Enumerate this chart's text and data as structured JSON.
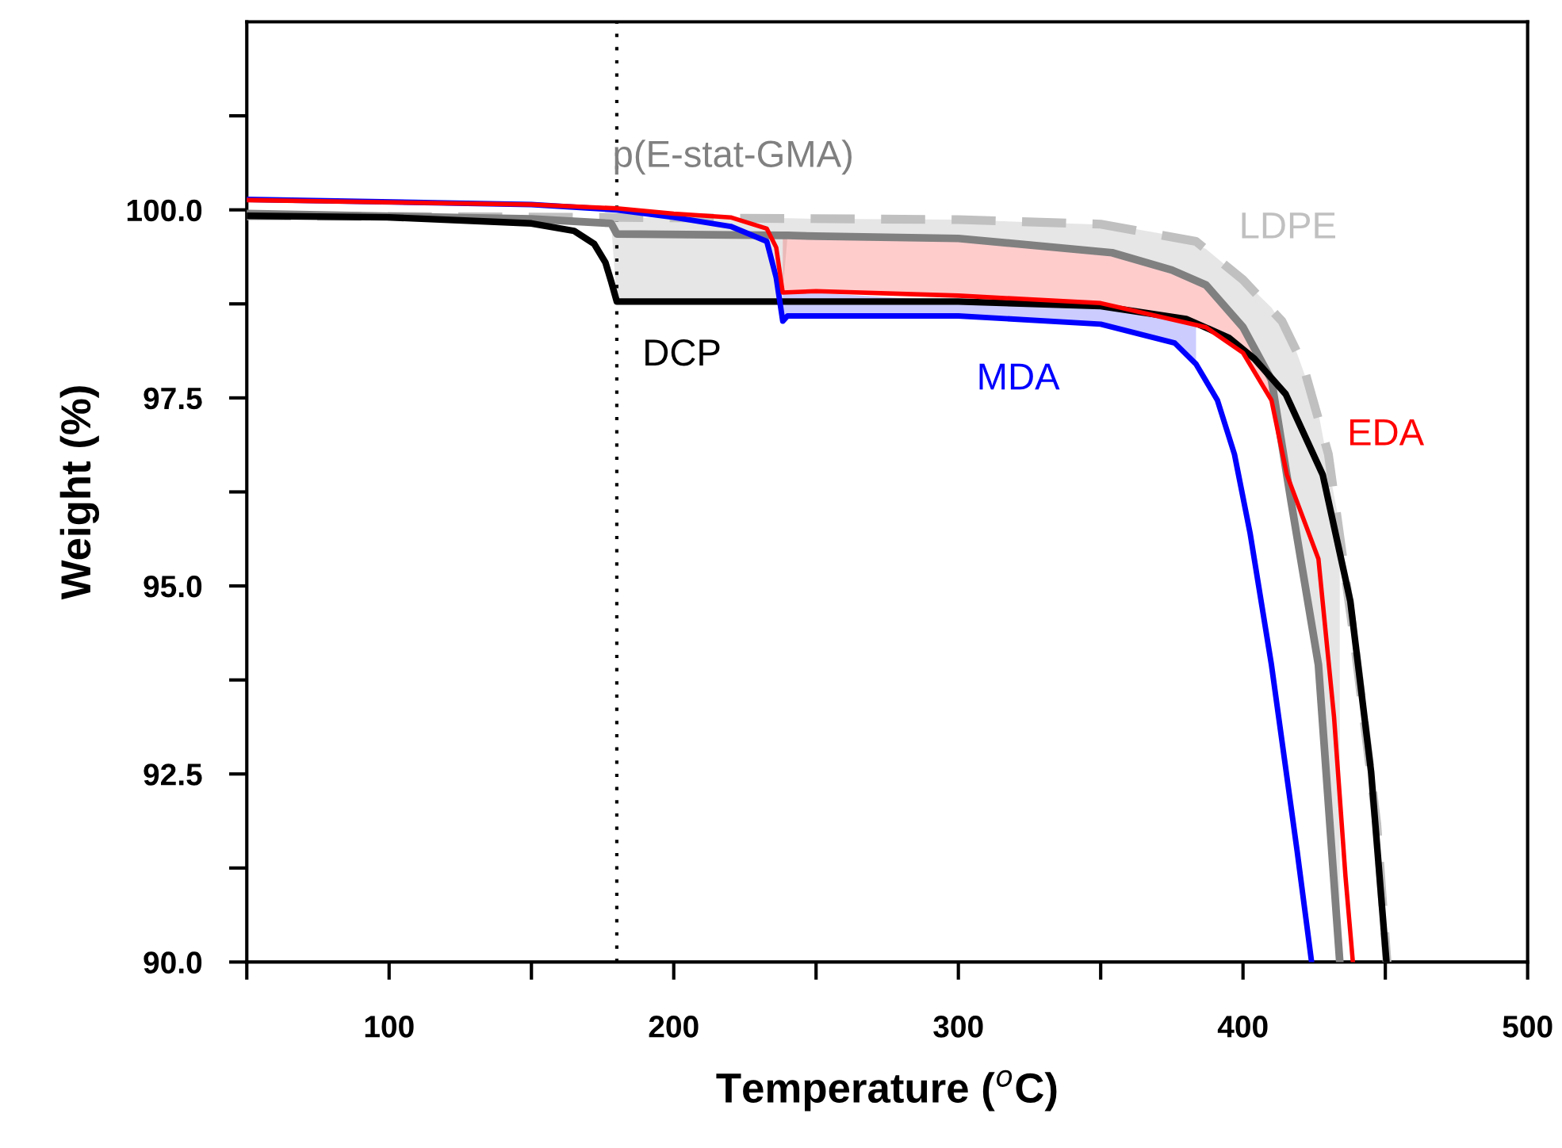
{
  "chart_data": {
    "type": "line",
    "xlabel": "Temperature ($^{o}$C)",
    "ylabel": "Weight (%)",
    "xlim": [
      50,
      500
    ],
    "ylim": [
      90,
      102.5
    ],
    "xticks": [
      {
        "value": 50,
        "label": null
      },
      100,
      {
        "value": 150,
        "label": null
      },
      200,
      {
        "value": 250,
        "label": null
      },
      300,
      {
        "value": 350,
        "label": null
      },
      400,
      {
        "value": 450,
        "label": null
      },
      500
    ],
    "yticks": [
      {
        "value": 90,
        "label": "90.0"
      },
      {
        "value": 91.25,
        "label": null
      },
      92.5,
      {
        "value": 93.75,
        "label": null
      },
      {
        "value": 95,
        "label": "95.0"
      },
      {
        "value": 96.25,
        "label": null
      },
      97.5,
      {
        "value": 98.75,
        "label": null
      },
      {
        "value": 100,
        "label": "100.0"
      },
      {
        "value": 101.25,
        "label": null
      }
    ],
    "grid": false,
    "legend": false,
    "marker": "none",
    "ref_lines": [
      {
        "axis": "x",
        "value": 180,
        "color": "#000000",
        "line_style": "dotted"
      }
    ],
    "series": [
      {
        "name": "LDPE",
        "color": "#c0c0c0",
        "line_style": "dashed",
        "x": [
          50,
          180,
          300,
          350,
          383.5,
          400,
          413.7,
          421,
          430,
          439,
          447,
          450.6
        ],
        "values": [
          99.92,
          99.9,
          99.87,
          99.81,
          99.58,
          99.07,
          98.52,
          97.95,
          96.75,
          94.3,
          91.84,
          90
        ]
      },
      {
        "name": "p(E-stat-GMA)",
        "color": "#808080",
        "line_style": "solid",
        "x": [
          50,
          150,
          178,
          180,
          238,
          240,
          250,
          300,
          354,
          375,
          387,
          400,
          410,
          417,
          426.5,
          434
        ],
        "values": [
          99.95,
          99.88,
          99.82,
          99.68,
          99.66,
          99.66,
          99.65,
          99.62,
          99.43,
          99.2,
          99.0,
          98.44,
          97.74,
          96.1,
          93.95,
          90
        ],
        "lower": [
          99.95,
          99.88,
          99.82,
          98.78,
          98.78,
          99.66,
          99.65,
          99.62,
          99.43,
          99.2,
          99.0,
          98.44,
          97.74,
          96.1,
          93.95,
          90
        ],
        "upper": [
          99.95,
          99.88,
          99.82,
          99.9,
          99.89,
          99.89,
          99.88,
          99.87,
          99.8,
          99.66,
          99.48,
          99.07,
          98.7,
          98.3,
          97.3,
          95.8
        ]
      },
      {
        "name": "DCP",
        "color": "#000000",
        "line_style": "solid",
        "x": [
          50,
          100,
          150,
          165,
          172,
          176,
          178,
          180,
          200,
          300,
          350,
          380,
          395,
          404,
          415,
          428,
          437.7,
          445,
          450.4
        ],
        "values": [
          99.92,
          99.9,
          99.82,
          99.72,
          99.55,
          99.3,
          99.05,
          98.78,
          98.78,
          98.78,
          98.72,
          98.55,
          98.3,
          98.02,
          97.55,
          96.48,
          94.8,
          92.53,
          90
        ]
      },
      {
        "name": "MDA",
        "color": "#0000ff",
        "line_style": "solid",
        "x": [
          50,
          150,
          180,
          200,
          220,
          232.7,
          236,
          238.3,
          240,
          300,
          350,
          376,
          383.5,
          391,
          397,
          402.5,
          410,
          419,
          424.1
        ],
        "values": [
          100.14,
          100.07,
          100.0,
          99.9,
          99.78,
          99.58,
          99.1,
          98.52,
          98.59,
          98.59,
          98.48,
          98.23,
          97.95,
          97.47,
          96.75,
          95.7,
          93.95,
          91.48,
          90
        ],
        "lower": [
          null,
          null,
          null,
          null,
          null,
          null,
          null,
          98.52,
          98.59,
          98.59,
          98.48,
          98.23,
          97.95,
          null,
          null,
          null,
          null,
          null,
          null
        ],
        "upper": [
          null,
          null,
          null,
          null,
          null,
          null,
          null,
          98.9,
          98.92,
          98.78,
          98.72,
          98.58,
          98.45,
          null,
          null,
          null,
          null,
          null,
          null
        ]
      },
      {
        "name": "EDA",
        "color": "#ff0000",
        "line_style": "solid",
        "x": [
          50,
          150,
          180,
          200,
          220,
          232.7,
          236,
          238.3,
          250,
          300,
          350,
          387,
          400,
          410,
          415.4,
          426.5,
          432,
          436,
          438.6
        ],
        "values": [
          100.13,
          100.07,
          100.02,
          99.95,
          99.9,
          99.75,
          99.5,
          98.9,
          98.92,
          98.86,
          98.76,
          98.44,
          98.1,
          97.47,
          96.48,
          95.36,
          93.25,
          91.14,
          90
        ],
        "lower": [
          null,
          null,
          null,
          null,
          null,
          null,
          null,
          98.9,
          98.92,
          98.86,
          98.76,
          98.44,
          98.1,
          97.47,
          96.48,
          null,
          null,
          null,
          null
        ],
        "upper": [
          null,
          null,
          null,
          null,
          null,
          null,
          null,
          99.66,
          99.65,
          99.62,
          99.45,
          99.0,
          98.44,
          97.74,
          96.48,
          null,
          null,
          null,
          null
        ]
      }
    ]
  }
}
